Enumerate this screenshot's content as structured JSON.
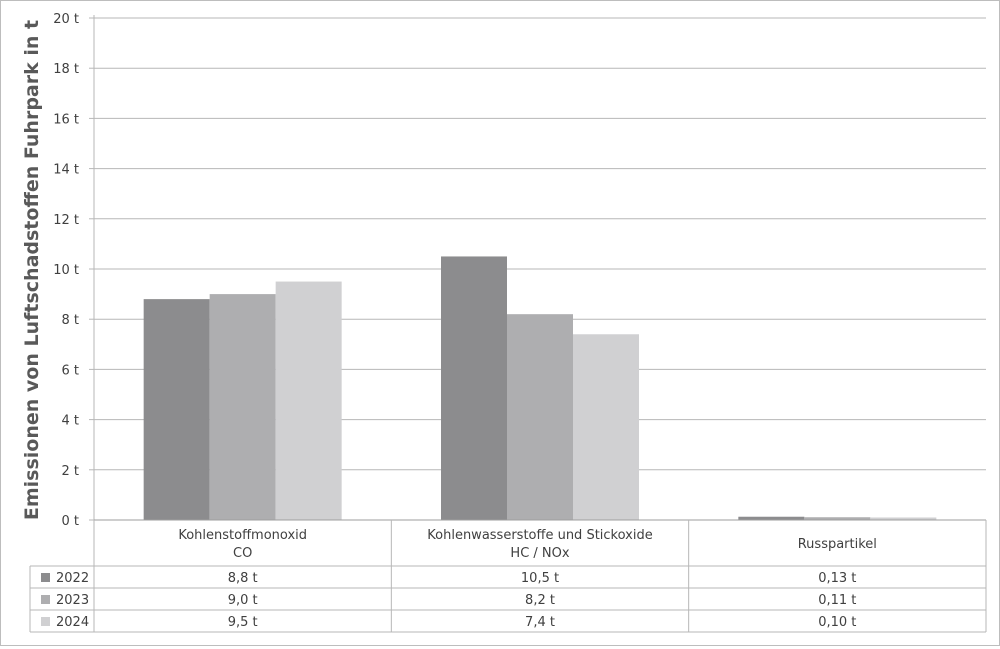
{
  "chart_data": {
    "type": "bar",
    "ylabel": "Emissionen von Luftschadstoffen  Fuhrpark in t",
    "y_unit": "t",
    "ylim": [
      0,
      20
    ],
    "ytick_step": 2,
    "ytick_labels": [
      "0 t",
      "2 t",
      "4 t",
      "6 t",
      "8 t",
      "10 t",
      "12 t",
      "14 t",
      "16 t",
      "18 t",
      "20 t"
    ],
    "grid": true,
    "legend": "data-table",
    "categories": [
      [
        "Kohlenstoffmonoxid",
        "CO"
      ],
      [
        "Kohlenwasserstoffe  und Stickoxide",
        "HC / NOx"
      ],
      [
        "Russpartikel"
      ]
    ],
    "series": [
      {
        "name": "2022",
        "color": "#8c8c8e",
        "values": [
          8.8,
          10.5,
          0.13
        ],
        "labels": [
          "8,8 t",
          "10,5 t",
          "0,13 t"
        ]
      },
      {
        "name": "2023",
        "color": "#aeaeb0",
        "values": [
          9.0,
          8.2,
          0.11
        ],
        "labels": [
          "9,0 t",
          "8,2 t",
          "0,11 t"
        ]
      },
      {
        "name": "2024",
        "color": "#d0d0d2",
        "values": [
          9.5,
          7.4,
          0.1
        ],
        "labels": [
          "9,5 t",
          "7,4 t",
          "0,10 t"
        ]
      }
    ]
  }
}
